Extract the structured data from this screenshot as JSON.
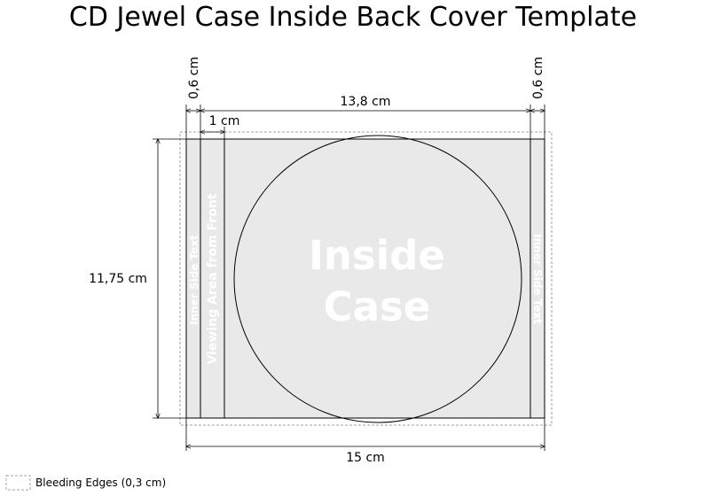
{
  "title": "CD Jewel Case Inside Back Cover Template",
  "dimensions": {
    "left_spine": "0,6 cm",
    "right_spine": "0,6 cm",
    "inner_width": "13,8 cm",
    "viewing_width": "1 cm",
    "height": "11,75 cm",
    "total_width": "15 cm"
  },
  "panel_text": {
    "inner_side_left": "Inner Side Text",
    "viewing_area": "Viewing Area from Front",
    "center_line1": "Inside",
    "center_line2": "Case",
    "inner_side_right": "Inner Side Text"
  },
  "legend": {
    "bleeding_edges": "Bleeding Edges (0,3 cm)"
  },
  "colors": {
    "panel_fill": "#e9e9e9",
    "outline": "#000000",
    "bleed_outline": "#a0a0a0",
    "panel_text": "#ffffff"
  }
}
